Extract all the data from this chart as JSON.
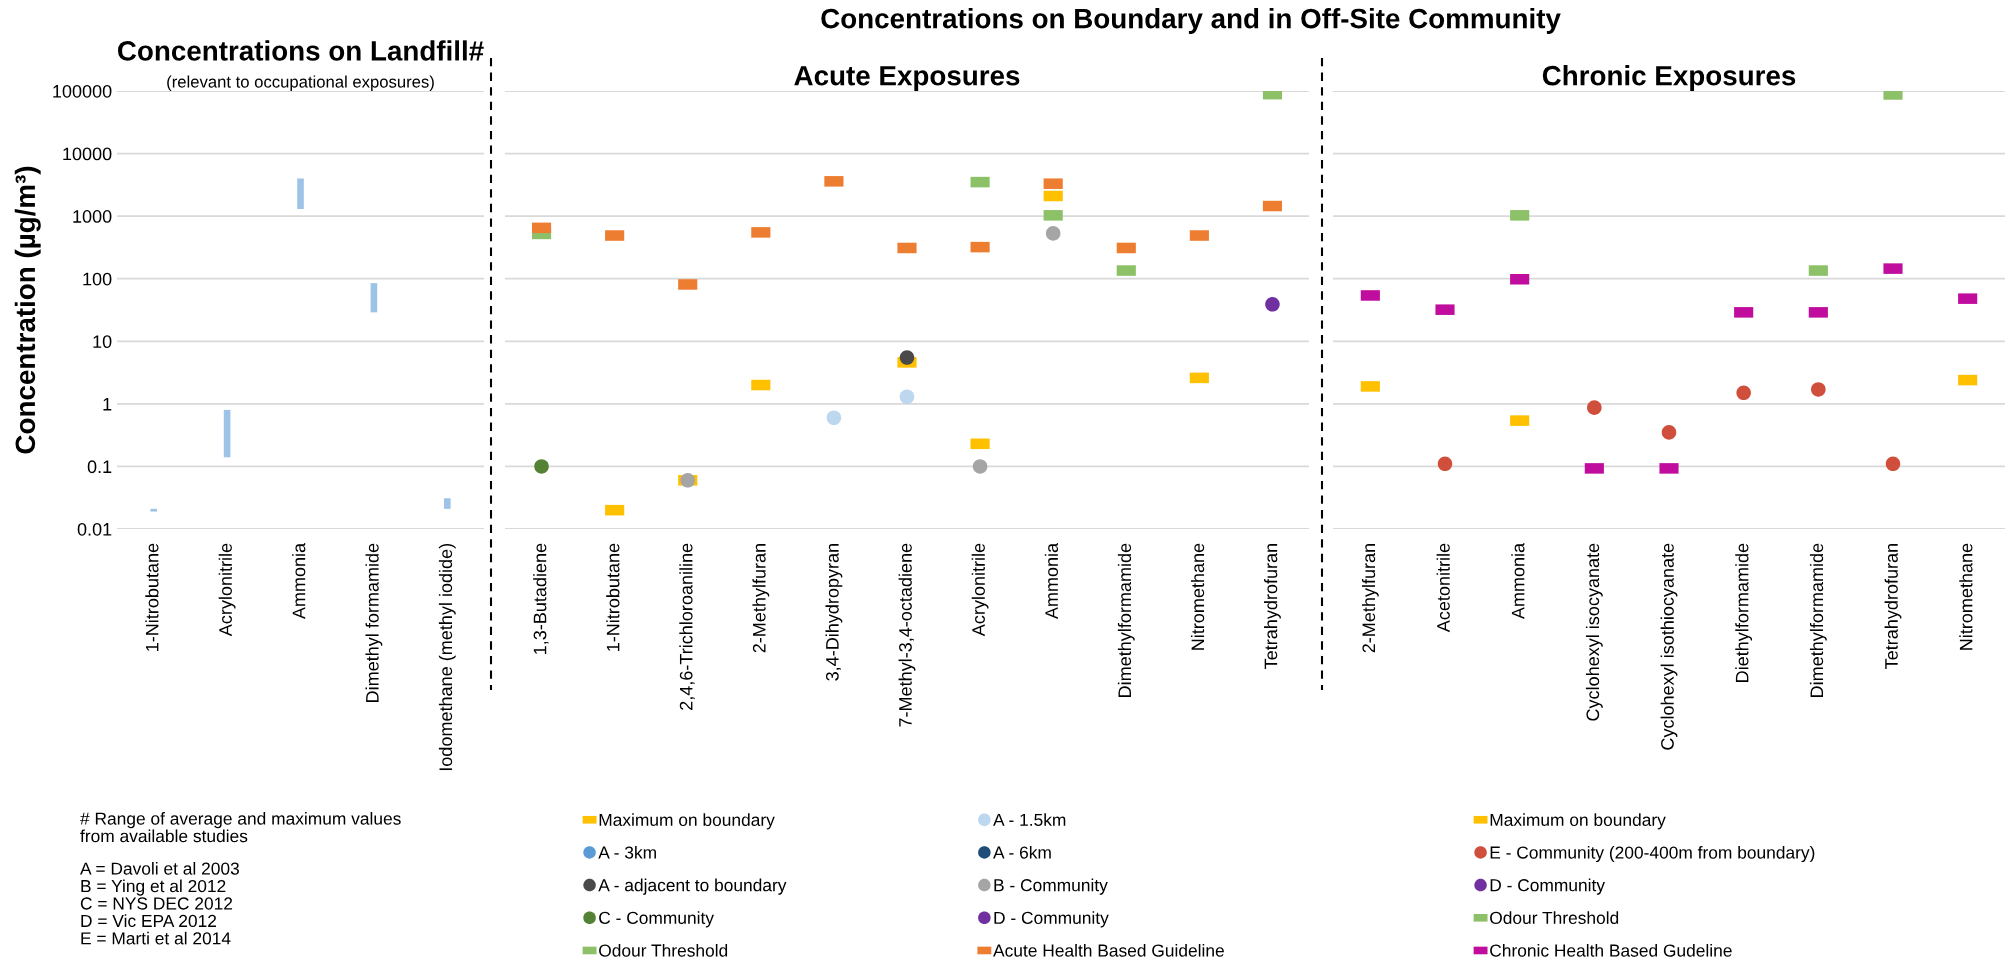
{
  "chart_data": [
    {
      "type": "bar",
      "title": "Concentrations on Landfill#",
      "subtitle": "(relevant to occupational exposures)",
      "ylabel": "Concentration (µg/m³)",
      "categories": [
        "1-Nitrobutane",
        "Acrylonitrile",
        "Ammonia",
        "Dimethyl formamide",
        "Iodomethane (methyl iodide)"
      ],
      "series": [
        {
          "color": "#9dc3e6",
          "base": [
            0.019,
            0.14,
            1300,
            29,
            0.021
          ],
          "values": [
            0.002,
            0.66,
            2700,
            56,
            0.01
          ]
        }
      ],
      "log": true,
      "ylim": [
        0.01,
        100000
      ],
      "yticks": [
        0.01,
        0.1,
        1,
        10,
        100,
        1000,
        10000,
        100000
      ],
      "grid": "y",
      "legend": false,
      "annotations": [
        "# Range of average and maximum values\nfrom available studies",
        "A = Davoli et al 2003\nB = Ying et al 2012\nC = NYS DEC 2012\nD = Vic EPA 2012\nE = Marti et al 2014"
      ]
    },
    {
      "type": "scatter",
      "title": "Acute Exposures",
      "annotations": [
        "Concentrations on Boundary and in Off-Site Community"
      ],
      "categories": [
        "1,3-Butadiene",
        "1-Nitrobutane",
        "2,4,6-Trichloroaniline",
        "2-Methylfuran",
        "3,4-Dihydropyran",
        "7-Methyl-3,4-octadiene",
        "Acrylonitrile",
        "Ammonia",
        "Dimethylformamide",
        "Nitromethane",
        "Tetrahydrofuran"
      ],
      "series": [
        {
          "name": "Maximum on boundary",
          "color": "#ffc000",
          "marker": "square",
          "values": [
            null,
            0.02,
            0.06,
            2.0,
            null,
            4.6,
            0.23,
            2100,
            null,
            2.6,
            null
          ]
        },
        {
          "name": "A - 3km",
          "color": "#5b9bd5",
          "marker": "circle",
          "values": [
            null,
            null,
            null,
            null,
            null,
            null,
            null,
            null,
            null,
            null,
            null
          ]
        },
        {
          "name": "A - adjacent to boundary",
          "color": "#4a4a4a",
          "marker": "circle",
          "values": [
            null,
            null,
            null,
            null,
            null,
            5.5,
            null,
            null,
            null,
            null,
            null
          ]
        },
        {
          "name": "C - Community",
          "color": "#548235",
          "marker": "circle",
          "values": [
            0.1,
            null,
            null,
            null,
            null,
            null,
            null,
            null,
            null,
            null,
            null
          ]
        },
        {
          "name": "Odour Threshold",
          "color": "#8cc168",
          "marker": "square",
          "values": [
            520,
            null,
            null,
            null,
            null,
            null,
            3500,
            1030,
            135,
            null,
            89000
          ]
        },
        {
          "name": "A - 1.5km",
          "color": "#bdd7ee",
          "marker": "circle",
          "values": [
            null,
            null,
            null,
            null,
            0.6,
            1.3,
            null,
            null,
            null,
            null,
            null
          ]
        },
        {
          "name": "A - 6km",
          "color": "#1f4e79",
          "marker": "circle",
          "values": [
            null,
            null,
            null,
            null,
            null,
            null,
            null,
            null,
            null,
            null,
            null
          ]
        },
        {
          "name": "B - Community",
          "color": "#a5a5a5",
          "marker": "circle",
          "values": [
            null,
            null,
            0.06,
            null,
            null,
            null,
            0.1,
            530,
            null,
            null,
            null
          ]
        },
        {
          "name": "D - Community",
          "color": "#7030a0",
          "marker": "circle",
          "values": [
            null,
            null,
            null,
            null,
            null,
            null,
            null,
            null,
            null,
            null,
            39
          ]
        },
        {
          "name": "Acute Health Based Guideline",
          "color": "#ed7d31",
          "marker": "square",
          "values": [
            650,
            490,
            81,
            550,
            3600,
            310,
            320,
            3300,
            310,
            490,
            1450
          ]
        }
      ],
      "log": true,
      "ylim": [
        0.01,
        100000
      ],
      "yticks": [
        0.01,
        0.1,
        1,
        10,
        100,
        1000,
        10000,
        100000
      ],
      "grid": "y",
      "tick_labels": "x",
      "legend": "bottom"
    },
    {
      "type": "scatter",
      "title": "Chronic Exposures",
      "categories": [
        "2-Methylfuran",
        "Acetonitrile",
        "Ammonia",
        "Cyclohexyl isocyanate",
        "Cyclohexyl isothiocyanate",
        "Diethylformamide",
        "Dimethylformamide",
        "Tetrahydrofuran",
        "Nitromethane"
      ],
      "series": [
        {
          "name": "Maximum on boundary",
          "color": "#ffc000",
          "marker": "square",
          "values": [
            1.9,
            null,
            0.54,
            null,
            null,
            null,
            null,
            null,
            2.4
          ]
        },
        {
          "name": "E - Community (200-400m from boundary)",
          "color": "#d04e3c",
          "marker": "circle",
          "values": [
            null,
            0.11,
            null,
            0.87,
            0.35,
            1.5,
            1.7,
            0.11,
            null
          ]
        },
        {
          "name": "D - Community",
          "color": "#7030a0",
          "marker": "circle",
          "values": [
            null,
            null,
            null,
            null,
            null,
            null,
            null,
            null,
            null
          ]
        },
        {
          "name": "Odour Threshold",
          "color": "#8cc168",
          "marker": "square",
          "values": [
            null,
            null,
            1030,
            null,
            null,
            null,
            135,
            88000,
            null
          ]
        },
        {
          "name": "Chronic Health Based Gudeline",
          "color": "#c00d9e",
          "marker": "square",
          "values": [
            54,
            32,
            98,
            0.093,
            0.093,
            29,
            29,
            145,
            48
          ]
        }
      ],
      "log": true,
      "ylim": [
        0.01,
        100000
      ],
      "yticks": [
        0.01,
        0.1,
        1,
        10,
        100,
        1000,
        10000,
        100000
      ],
      "grid": "y",
      "tick_labels": "x",
      "legend": "bottom"
    }
  ]
}
